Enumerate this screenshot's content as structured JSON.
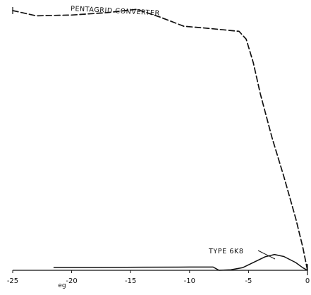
{
  "chart_data": {
    "type": "line",
    "title": "",
    "xlabel": "eg",
    "ylabel": "",
    "xlim": [
      -25,
      0
    ],
    "ylim": [
      0,
      100
    ],
    "grid": false,
    "legend": "none",
    "x_ticks": [
      "-25",
      "-20",
      "-15",
      "-10",
      "-5",
      "0"
    ],
    "series": [
      {
        "name": "PENTAGRID CONVERTER",
        "style": "dashed",
        "color": "#111111",
        "points": [
          [
            -25,
            100
          ],
          [
            -23,
            98
          ],
          [
            -20,
            98.3
          ],
          [
            -17,
            99.2
          ],
          [
            -14.5,
            100.5
          ],
          [
            -12.5,
            97.5
          ],
          [
            -10.5,
            94
          ],
          [
            -8,
            93
          ],
          [
            -5.8,
            92
          ],
          [
            -5.2,
            89
          ],
          [
            -4.6,
            80
          ],
          [
            -4,
            68
          ],
          [
            -3,
            51
          ],
          [
            -2,
            36
          ],
          [
            -1,
            20
          ],
          [
            -0.4,
            9
          ],
          [
            0,
            0
          ]
        ]
      },
      {
        "name": "TYPE 6K8",
        "style": "solid",
        "color": "#111111",
        "points": [
          [
            -21.5,
            1.1
          ],
          [
            -18,
            1.1
          ],
          [
            -14,
            1.2
          ],
          [
            -10,
            1.25
          ],
          [
            -8,
            1.25
          ],
          [
            -7.5,
            0
          ],
          [
            -6.5,
            0.2
          ],
          [
            -5.5,
            1
          ],
          [
            -4.5,
            3.2
          ],
          [
            -3.6,
            5.2
          ],
          [
            -2.8,
            6.1
          ],
          [
            -2,
            5.3
          ],
          [
            -1,
            3
          ],
          [
            -0.4,
            1
          ],
          [
            0,
            0
          ]
        ]
      }
    ],
    "annotations": [
      {
        "text": "PENTAGRID CONVERTER",
        "series": 0
      },
      {
        "text": "TYPE 6K8",
        "series": 1
      }
    ]
  }
}
